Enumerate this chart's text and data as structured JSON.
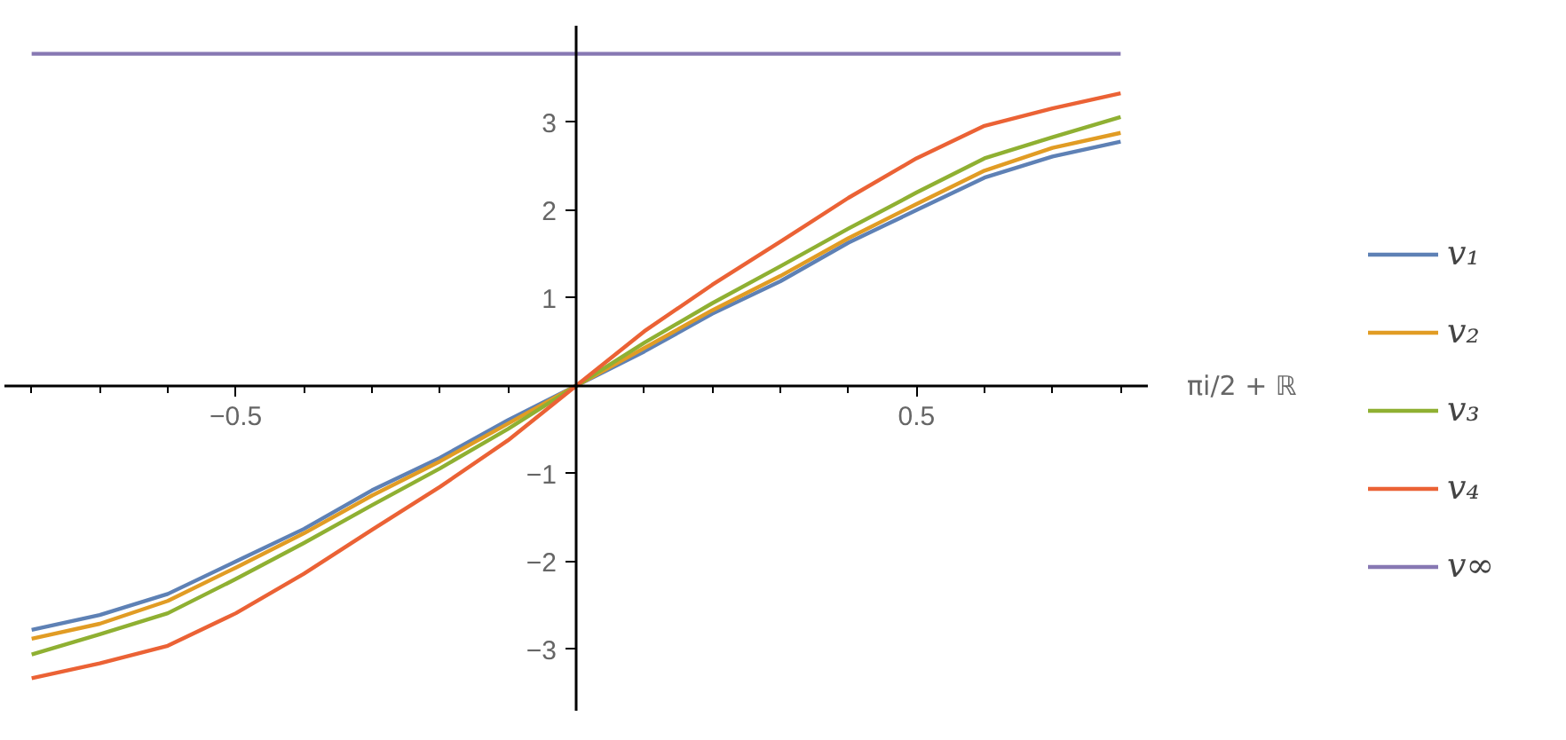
{
  "chart_data": {
    "type": "line",
    "xlabel": "πi/2 + ℝ",
    "x": [
      -0.8,
      -0.7,
      -0.6,
      -0.5,
      -0.4,
      -0.3,
      -0.2,
      -0.1,
      0,
      0.1,
      0.2,
      0.3,
      0.4,
      0.5,
      0.6,
      0.7,
      0.8
    ],
    "series": [
      {
        "name": "v₁",
        "color": "#5e81b5",
        "values": [
          -2.78,
          -2.61,
          -2.37,
          -2.0,
          -1.63,
          -1.19,
          -0.82,
          -0.39,
          0,
          0.39,
          0.82,
          1.19,
          1.63,
          2.0,
          2.37,
          2.61,
          2.78
        ]
      },
      {
        "name": "v₂",
        "color": "#e19c24",
        "values": [
          -2.88,
          -2.71,
          -2.45,
          -2.07,
          -1.68,
          -1.25,
          -0.86,
          -0.43,
          0,
          0.43,
          0.86,
          1.25,
          1.68,
          2.07,
          2.45,
          2.71,
          2.88
        ]
      },
      {
        "name": "v₃",
        "color": "#8fb032",
        "values": [
          -3.06,
          -2.83,
          -2.59,
          -2.2,
          -1.79,
          -1.36,
          -0.94,
          -0.49,
          0,
          0.49,
          0.94,
          1.36,
          1.79,
          2.2,
          2.59,
          2.83,
          3.06
        ]
      },
      {
        "name": "v₄",
        "color": "#eb6235",
        "values": [
          -3.33,
          -3.16,
          -2.96,
          -2.59,
          -2.14,
          -1.64,
          -1.15,
          -0.62,
          0,
          0.62,
          1.15,
          1.64,
          2.14,
          2.59,
          2.96,
          3.16,
          3.33
        ]
      },
      {
        "name": "v∞",
        "color": "#8778b3",
        "values": [
          3.78,
          3.78,
          3.78,
          3.78,
          3.78,
          3.78,
          3.78,
          3.78,
          3.78,
          3.78,
          3.78,
          3.78,
          3.78,
          3.78,
          3.78,
          3.78,
          3.78
        ]
      }
    ],
    "xlim": [
      -0.84,
      0.84
    ],
    "ylim": [
      -3.7,
      4.1
    ],
    "xticks": [
      {
        "value": -0.8,
        "label": null
      },
      {
        "value": -0.7,
        "label": null
      },
      {
        "value": -0.6,
        "label": null
      },
      {
        "value": -0.5,
        "label": "−0.5"
      },
      {
        "value": -0.4,
        "label": null
      },
      {
        "value": -0.3,
        "label": null
      },
      {
        "value": -0.2,
        "label": null
      },
      {
        "value": -0.1,
        "label": null
      },
      {
        "value": 0.1,
        "label": null
      },
      {
        "value": 0.2,
        "label": null
      },
      {
        "value": 0.3,
        "label": null
      },
      {
        "value": 0.4,
        "label": null
      },
      {
        "value": 0.5,
        "label": "0.5"
      },
      {
        "value": 0.6,
        "label": null
      },
      {
        "value": 0.7,
        "label": null
      },
      {
        "value": 0.8,
        "label": null
      }
    ],
    "yticks": [
      {
        "value": -3,
        "label": "−3"
      },
      {
        "value": -2,
        "label": "−2"
      },
      {
        "value": -1,
        "label": "−1"
      },
      1,
      2,
      3
    ],
    "grid": false,
    "legend": "right",
    "marker": "none",
    "line_style": "solid"
  }
}
